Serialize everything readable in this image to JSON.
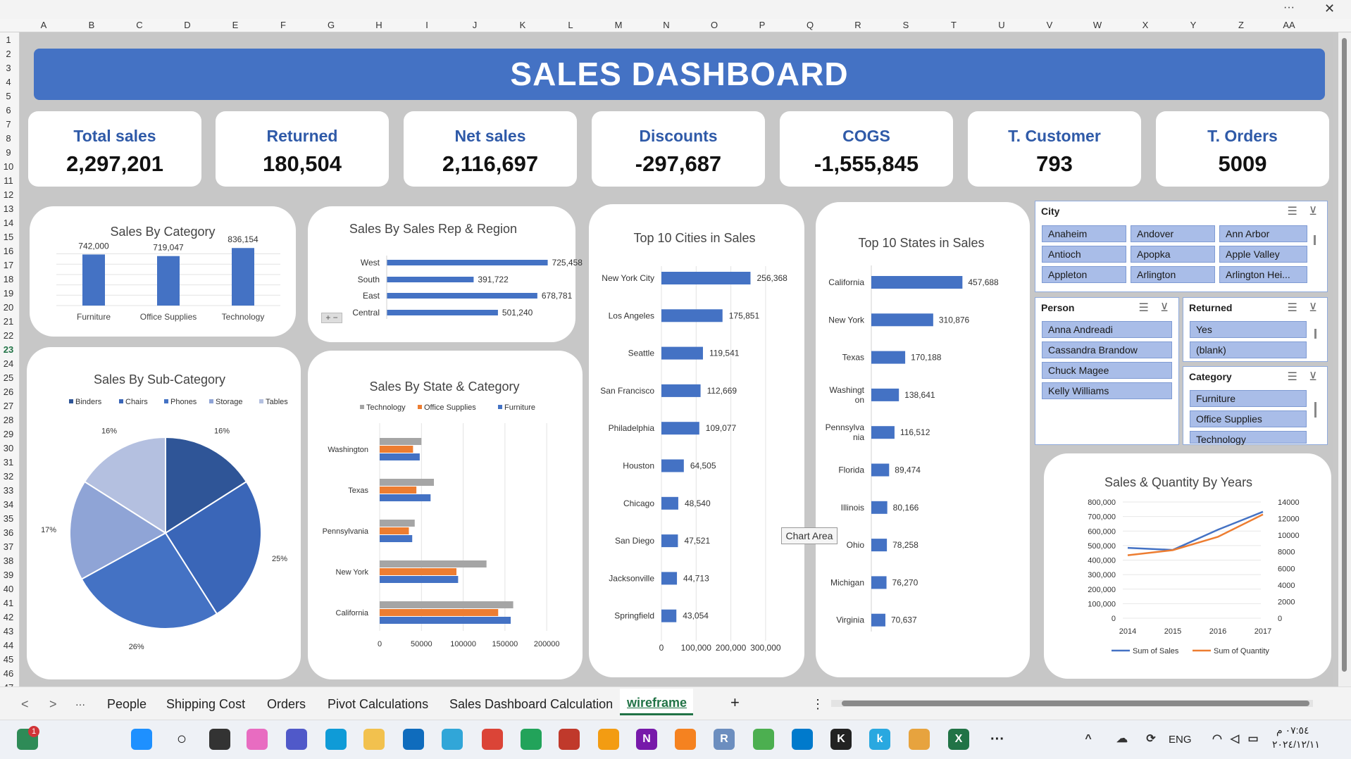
{
  "columns": [
    "A",
    "B",
    "C",
    "D",
    "E",
    "F",
    "G",
    "H",
    "I",
    "J",
    "K",
    "L",
    "M",
    "N",
    "O",
    "P",
    "Q",
    "R",
    "S",
    "T",
    "U",
    "V",
    "W",
    "X",
    "Y",
    "Z",
    "AA"
  ],
  "rows": [
    "1",
    "2",
    "3",
    "4",
    "5",
    "6",
    "7",
    "8",
    "9",
    "10",
    "11",
    "12",
    "13",
    "14",
    "15",
    "16",
    "17",
    "18",
    "19",
    "20",
    "21",
    "22",
    "23",
    "24",
    "25",
    "26",
    "27",
    "28",
    "29",
    "30",
    "31",
    "32",
    "33",
    "34",
    "35",
    "36",
    "37",
    "38",
    "39",
    "40",
    "41",
    "42",
    "43",
    "44",
    "45",
    "46",
    "47"
  ],
  "window": {
    "more": "···",
    "close": "✕"
  },
  "dashboard_title": "SALES DASHBOARD",
  "kpis": [
    {
      "label": "Total sales",
      "value": "2,297,201"
    },
    {
      "label": "Returned",
      "value": "180,504"
    },
    {
      "label": "Net sales",
      "value": "2,116,697"
    },
    {
      "label": "Discounts",
      "value": "-297,687"
    },
    {
      "label": "COGS",
      "value": "-1,555,845"
    },
    {
      "label": "T. Customer",
      "value": "793"
    },
    {
      "label": "T. Orders",
      "value": "5009"
    }
  ],
  "tooltip": "Chart Area",
  "slicers": {
    "city": {
      "title": "City",
      "items": [
        "Anaheim",
        "Andover",
        "Ann Arbor",
        "Antioch",
        "Apopka",
        "Apple Valley",
        "Appleton",
        "Arlington",
        "Arlington Hei..."
      ]
    },
    "person": {
      "title": "Person",
      "items": [
        "Anna Andreadi",
        "Cassandra Brandow",
        "Chuck Magee",
        "Kelly Williams"
      ]
    },
    "returned": {
      "title": "Returned",
      "items": [
        "Yes",
        "(blank)"
      ]
    },
    "category": {
      "title": "Category",
      "items": [
        "Furniture",
        "Office Supplies",
        "Technology"
      ]
    }
  },
  "sheet_tabs": [
    "People",
    "Shipping Cost",
    "Orders",
    "Pivot Calculations",
    "Sales Dashboard Calculation",
    "wireframe"
  ],
  "active_tab": "wireframe",
  "tab_controls": {
    "prev": "<",
    "next": ">",
    "more": "···",
    "add": "+",
    "options": "⋮"
  },
  "taskbar": {
    "lang": "ENG",
    "time": "٠٧:٥٤ م",
    "date": "٢٠٢٤/١٢/١١",
    "badge": "1"
  },
  "colors": {
    "accent": "#4472c4",
    "orange": "#ed7d31",
    "gray": "#a5a5a5"
  },
  "chart_data": [
    {
      "type": "bar",
      "title": "Sales By Category",
      "categories": [
        "Furniture",
        "Office Supplies",
        "Technology"
      ],
      "values": [
        742000,
        719047,
        836154
      ],
      "data_labels": [
        "742,000",
        "719,047",
        "836,154"
      ]
    },
    {
      "type": "bar",
      "orientation": "horizontal",
      "title": "Sales By Sales Rep & Region",
      "categories": [
        "West",
        "South",
        "East",
        "Central"
      ],
      "values": [
        725458,
        391722,
        678781,
        501240
      ],
      "data_labels": [
        "725,458",
        "391,722",
        "678,781",
        "501,240"
      ]
    },
    {
      "type": "bar",
      "orientation": "horizontal",
      "title": "Top 10 Cities in Sales",
      "categories": [
        "New York City",
        "Los Angeles",
        "Seattle",
        "San Francisco",
        "Philadelphia",
        "Houston",
        "Chicago",
        "San Diego",
        "Jacksonville",
        "Springfield"
      ],
      "values": [
        256368,
        175851,
        119541,
        112669,
        109077,
        64505,
        48540,
        47521,
        44713,
        43054
      ],
      "data_labels": [
        "256,368",
        "175,851",
        "119,541",
        "112,669",
        "109,077",
        "64,505",
        "48,540",
        "47,521",
        "44,713",
        "43,054"
      ],
      "x_ticks": [
        "0",
        "100,000",
        "200,000",
        "300,000"
      ],
      "xlim": [
        0,
        300000
      ]
    },
    {
      "type": "bar",
      "orientation": "horizontal",
      "title": "Top 10 States in Sales",
      "categories": [
        "California",
        "New York",
        "Texas",
        "Washington",
        "Pennsylvania",
        "Florida",
        "Illinois",
        "Ohio",
        "Michigan",
        "Virginia"
      ],
      "category_lines": [
        [
          "California"
        ],
        [
          "New York"
        ],
        [
          "Texas"
        ],
        [
          "Washingt",
          "on"
        ],
        [
          "Pennsylva",
          "nia"
        ],
        [
          "Florida"
        ],
        [
          "Illinois"
        ],
        [
          "Ohio"
        ],
        [
          "Michigan"
        ],
        [
          "Virginia"
        ]
      ],
      "values": [
        457688,
        310876,
        170188,
        138641,
        116512,
        89474,
        80166,
        78258,
        76270,
        70637
      ],
      "data_labels": [
        "457,688",
        "310,876",
        "170,188",
        "138,641",
        "116,512",
        "89,474",
        "80,166",
        "78,258",
        "76,270",
        "70,637"
      ]
    },
    {
      "type": "pie",
      "title": "Sales By Sub-Category",
      "legend": [
        "Binders",
        "Chairs",
        "Phones",
        "Storage",
        "Tables"
      ],
      "values": [
        16,
        25,
        26,
        17,
        16
      ],
      "data_labels": [
        "16%",
        "25%",
        "26%",
        "17%",
        "16%"
      ],
      "colors": [
        "#2f5597",
        "#3a66b8",
        "#4472c4",
        "#8fa4d6",
        "#b4c0e0"
      ]
    },
    {
      "type": "bar",
      "orientation": "horizontal",
      "title": "Sales By State & Category",
      "categories": [
        "Washington",
        "Texas",
        "Pennsylvania",
        "New York",
        "California"
      ],
      "series": [
        {
          "name": "Technology",
          "values": [
            50000,
            65000,
            42000,
            128000,
            160000
          ]
        },
        {
          "name": "Office Supplies",
          "values": [
            40000,
            44000,
            35000,
            92000,
            142000
          ]
        },
        {
          "name": "Furniture",
          "values": [
            48000,
            61000,
            39000,
            94000,
            157000
          ]
        }
      ],
      "x_ticks": [
        "0",
        "50000",
        "100000",
        "150000",
        "200000"
      ],
      "xlim": [
        0,
        200000
      ]
    },
    {
      "type": "line",
      "title": "Sales & Quantity By Years",
      "x": [
        "2014",
        "2015",
        "2016",
        "2017"
      ],
      "series": [
        {
          "name": "Sum of Sales",
          "values": [
            484000,
            470000,
            609000,
            733000
          ],
          "axis": "left"
        },
        {
          "name": "Sum of Quantity",
          "values": [
            7580,
            8200,
            9800,
            12500
          ],
          "axis": "right"
        }
      ],
      "y_ticks": [
        "800,000",
        "700,000",
        "600,000",
        "500,000",
        "400,000",
        "300,000",
        "200,000",
        "100,000",
        "0"
      ],
      "y2_ticks": [
        "14000",
        "12000",
        "10000",
        "8000",
        "6000",
        "4000",
        "2000",
        "0"
      ],
      "ylim": [
        0,
        800000
      ],
      "y2lim": [
        0,
        14000
      ]
    }
  ]
}
